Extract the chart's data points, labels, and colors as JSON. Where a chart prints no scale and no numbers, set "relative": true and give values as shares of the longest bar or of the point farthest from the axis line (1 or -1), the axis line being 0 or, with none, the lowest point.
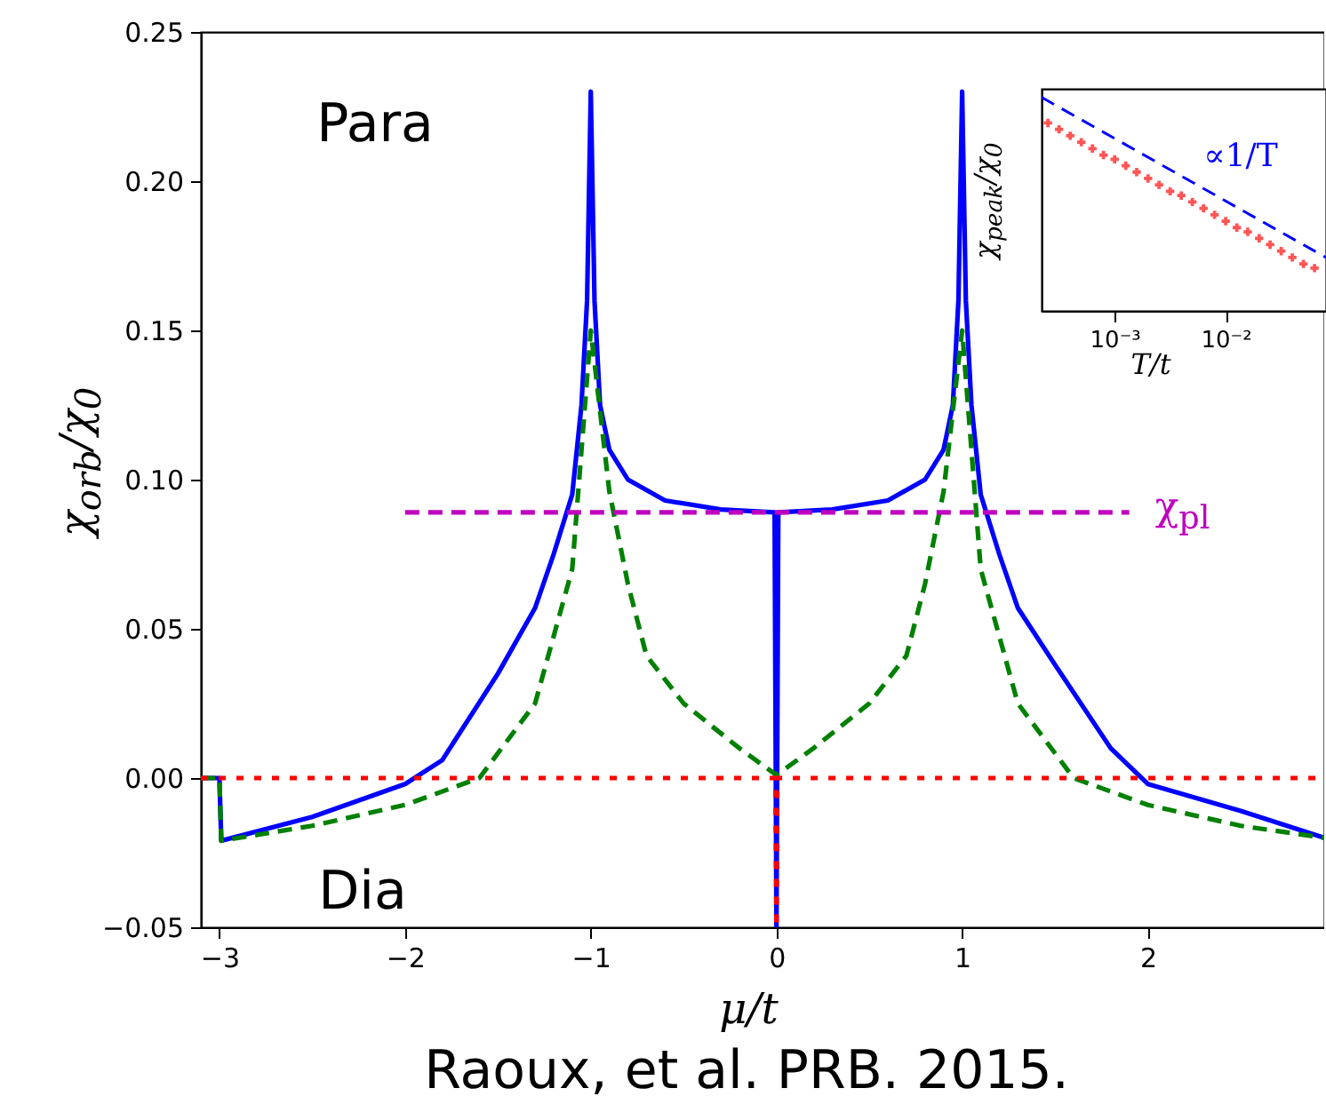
{
  "chart_data": [
    {
      "type": "line",
      "xlabel": "μ/t",
      "ylabel": "χ$_{orb}$/χ$_{0}$",
      "annotations": [
        "Para",
        "Dia",
        "Raoux, et al. PRB. 2015."
      ],
      "xlim": [
        -3.1,
        2.95
      ],
      "ylim": [
        -0.05,
        0.25
      ],
      "xticks": [
        {
          "value": -3,
          "label": "−3"
        },
        {
          "value": -2,
          "label": "−2"
        },
        {
          "value": -1,
          "label": "−1"
        },
        0,
        1,
        2
      ],
      "yticks": [
        {
          "value": -0.05,
          "label": "−0.05"
        },
        {
          "value": 0,
          "label": "0.00"
        },
        {
          "value": 0.05,
          "label": "0.05"
        },
        {
          "value": 0.1,
          "label": "0.10"
        },
        {
          "value": 0.15,
          "label": "0.15"
        },
        {
          "value": 0.2,
          "label": "0.20"
        },
        {
          "value": 0.25,
          "label": "0.25"
        }
      ],
      "grid": false,
      "series": [
        {
          "color": "#0000ff",
          "line_style": "solid",
          "x": [
            -3.1,
            -3.0,
            -2.99,
            -2.5,
            -2.0,
            -1.8,
            -1.5,
            -1.3,
            -1.2,
            -1.1,
            -1.05,
            -1.02,
            -1.0,
            -0.98,
            -0.95,
            -0.9,
            -0.8,
            -0.6,
            -0.3,
            -0.01,
            0,
            0.01,
            0.3,
            0.6,
            0.8,
            0.9,
            0.95,
            0.98,
            1.0,
            1.02,
            1.05,
            1.1,
            1.2,
            1.3,
            1.5,
            1.8,
            2.0,
            2.5,
            2.95
          ],
          "values": [
            0,
            0,
            -0.021,
            -0.013,
            -0.002,
            0.006,
            0.035,
            0.057,
            0.075,
            0.095,
            0.125,
            0.16,
            0.23,
            0.16,
            0.125,
            0.11,
            0.1,
            0.093,
            0.09,
            0.089,
            -0.05,
            0.089,
            0.09,
            0.093,
            0.1,
            0.11,
            0.125,
            0.16,
            0.23,
            0.16,
            0.125,
            0.095,
            0.075,
            0.057,
            0.038,
            0.01,
            -0.002,
            -0.011,
            -0.02
          ]
        },
        {
          "color": "#008000",
          "line_style": "dashed",
          "x": [
            -3.1,
            -3.0,
            -2.99,
            -2.5,
            -2.0,
            -1.6,
            -1.3,
            -1.1,
            -1.0,
            -0.9,
            -0.8,
            -0.7,
            -0.5,
            -0.2,
            0,
            0.2,
            0.5,
            0.7,
            0.8,
            0.9,
            1.0,
            1.1,
            1.3,
            1.6,
            2.0,
            2.5,
            2.95
          ],
          "values": [
            0,
            0,
            -0.021,
            -0.016,
            -0.009,
            0,
            0.025,
            0.07,
            0.15,
            0.096,
            0.065,
            0.041,
            0.025,
            0.01,
            0.001,
            0.01,
            0.025,
            0.041,
            0.065,
            0.096,
            0.15,
            0.07,
            0.025,
            0,
            -0.009,
            -0.016,
            -0.02
          ]
        },
        {
          "color": "#ff0000",
          "line_style": "dotted",
          "x": [
            -3.1,
            -0.005,
            0,
            0.005,
            2.95
          ],
          "values": [
            0,
            0,
            -0.05,
            0,
            0
          ]
        },
        {
          "name": "χ$_{pl}$",
          "color": "#bf00bf",
          "line_style": "dashed",
          "x": [
            -2.0,
            1.9
          ],
          "values": [
            0.089,
            0.089
          ]
        }
      ]
    },
    {
      "type": "line",
      "xlabel": "T/t",
      "ylabel": "χ$_{peak}$/χ$_{0}$",
      "relative": true,
      "log": "x",
      "xlim": [
        0.00022,
        0.08
      ],
      "xticks": [
        {
          "value": 0.001,
          "label": "10⁻³"
        },
        {
          "value": 0.01,
          "label": "10⁻²"
        }
      ],
      "grid": false,
      "series": [
        {
          "type": "scatter",
          "marker": "cross",
          "color": "#ff5555",
          "x": [
            0.000251,
            0.000316,
            0.000398,
            0.000501,
            0.000631,
            0.000794,
            0.001,
            0.00126,
            0.00158,
            0.002,
            0.00251,
            0.00316,
            0.00398,
            0.00501,
            0.00631,
            0.00794,
            0.01,
            0.0126,
            0.0158,
            0.02,
            0.0251,
            0.0316,
            0.0398,
            0.0501,
            0.0631
          ],
          "values": [
            0.88,
            0.85,
            0.82,
            0.79,
            0.76,
            0.73,
            0.71,
            0.68,
            0.65,
            0.62,
            0.59,
            0.56,
            0.54,
            0.51,
            0.48,
            0.45,
            0.42,
            0.39,
            0.37,
            0.34,
            0.31,
            0.28,
            0.25,
            0.22,
            0.2
          ]
        },
        {
          "name": "∝1/T",
          "color": "#0000ff",
          "line_style": "dashed",
          "x": [
            0.00022,
            0.08
          ],
          "values": [
            1.0,
            0.25
          ]
        }
      ]
    }
  ]
}
